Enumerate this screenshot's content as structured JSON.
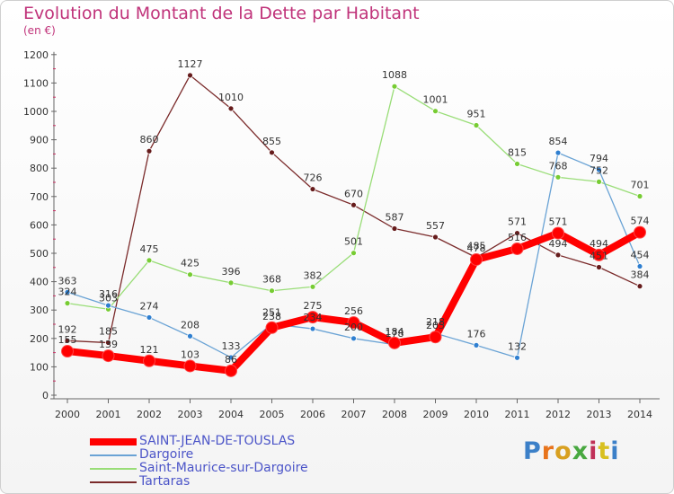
{
  "header": {
    "title": "Evolution du Montant de la Dette par Habitant",
    "subtitle": "(en €)"
  },
  "colors": {
    "title": "#c0337a",
    "legend_text": "#4c55c8",
    "axis": "#666666"
  },
  "logo": {
    "text": "Proxiti",
    "letter_colors": [
      "#3c80c8",
      "#e8741c",
      "#d8a020",
      "#48a840",
      "#c03058",
      "#d8c020",
      "#3c80c8"
    ]
  },
  "chart_data": {
    "type": "line",
    "title": "Evolution du Montant de la Dette par Habitant",
    "subtitle": "(en €)",
    "x": [
      "2000",
      "2001",
      "2002",
      "2003",
      "2004",
      "2005",
      "2006",
      "2007",
      "2008",
      "2009",
      "2010",
      "2011",
      "2012",
      "2013",
      "2014"
    ],
    "ylim": [
      0,
      1200
    ],
    "yticks": [
      "0",
      "100",
      "200",
      "300",
      "400",
      "500",
      "600",
      "700",
      "800",
      "900",
      "1000",
      "1100",
      "1200"
    ],
    "grid": false,
    "legend_position": "bottom-left",
    "series": [
      {
        "name": "SAINT-JEAN-DE-TOUSLAS",
        "color": "#ff0000",
        "marker_color": "#ff0000",
        "values": [
          155,
          139,
          121,
          103,
          86,
          238,
          275,
          256,
          184,
          205,
          478,
          516,
          571,
          494,
          574
        ],
        "labels": [
          "155",
          "139",
          "121",
          "103",
          "86",
          "238",
          "275",
          "256",
          "184",
          "205",
          "478",
          "516",
          "571",
          "494",
          "574"
        ]
      },
      {
        "name": "Dargoire",
        "color": "#6aa3d5",
        "marker_color": "#2f7fd0",
        "values": [
          363,
          316,
          274,
          208,
          133,
          251,
          234,
          200,
          178,
          218,
          176,
          132,
          854,
          794,
          454
        ],
        "labels": [
          "363",
          "316",
          "274",
          "208",
          "133",
          "251",
          "234",
          "200",
          "178",
          "218",
          "176",
          "132",
          "854",
          "794",
          "454"
        ]
      },
      {
        "name": "Saint-Maurice-sur-Dargoire",
        "color": "#99dd77",
        "marker_color": "#77cc33",
        "values": [
          324,
          303,
          475,
          425,
          396,
          368,
          382,
          501,
          1088,
          1001,
          951,
          815,
          768,
          752,
          701
        ],
        "labels": [
          "324",
          "303",
          "475",
          "425",
          "396",
          "368",
          "382",
          "501",
          "1088",
          "1001",
          "951",
          "815",
          "768",
          "752",
          "701"
        ]
      },
      {
        "name": "Tartaras",
        "color": "#7a2a2a",
        "marker_color": "#661c1c",
        "values": [
          192,
          185,
          860,
          1127,
          1010,
          855,
          726,
          670,
          587,
          557,
          485,
          571,
          494,
          451,
          384
        ],
        "labels": [
          "192",
          "185",
          "860",
          "1127",
          "1010",
          "855",
          "726",
          "670",
          "587",
          "557",
          "485",
          "571",
          "494",
          "451",
          "384"
        ]
      }
    ]
  }
}
